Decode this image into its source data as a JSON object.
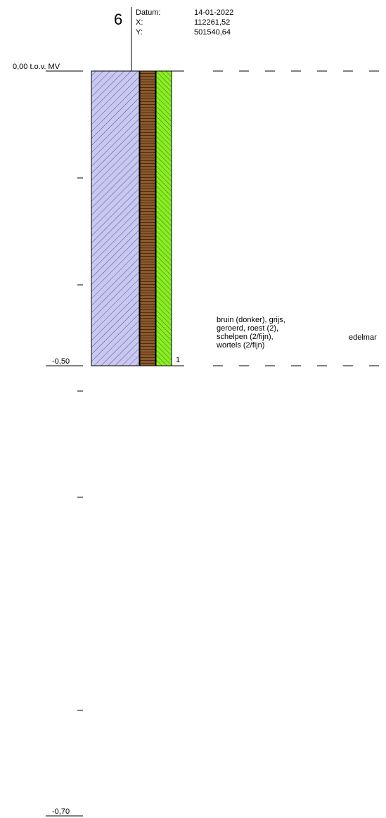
{
  "boring": {
    "number": "6",
    "fields": [
      {
        "label": "Datum:",
        "value": "14-01-2022"
      },
      {
        "label": "X:",
        "value": "112261,52"
      },
      {
        "label": "Y:",
        "value": "501540,64"
      }
    ]
  },
  "depth_axis": {
    "top_label": "0,00 t.o.v. MV",
    "labels": [
      "-0,50",
      "-0,70"
    ]
  },
  "layers": [
    {
      "number": "1",
      "description_lines": [
        "bruin (donker), grijs,",
        "geroerd, roest (2),",
        "schelpen (2/fijn),",
        "wortels (2/fijn)"
      ],
      "extra": "edelmar"
    }
  ],
  "colors": {
    "column_fill": "#c8c8f0",
    "column_hatch": "#5050a0",
    "brown_strip": "#8b5a2b",
    "green_strip": "#88ee22"
  }
}
